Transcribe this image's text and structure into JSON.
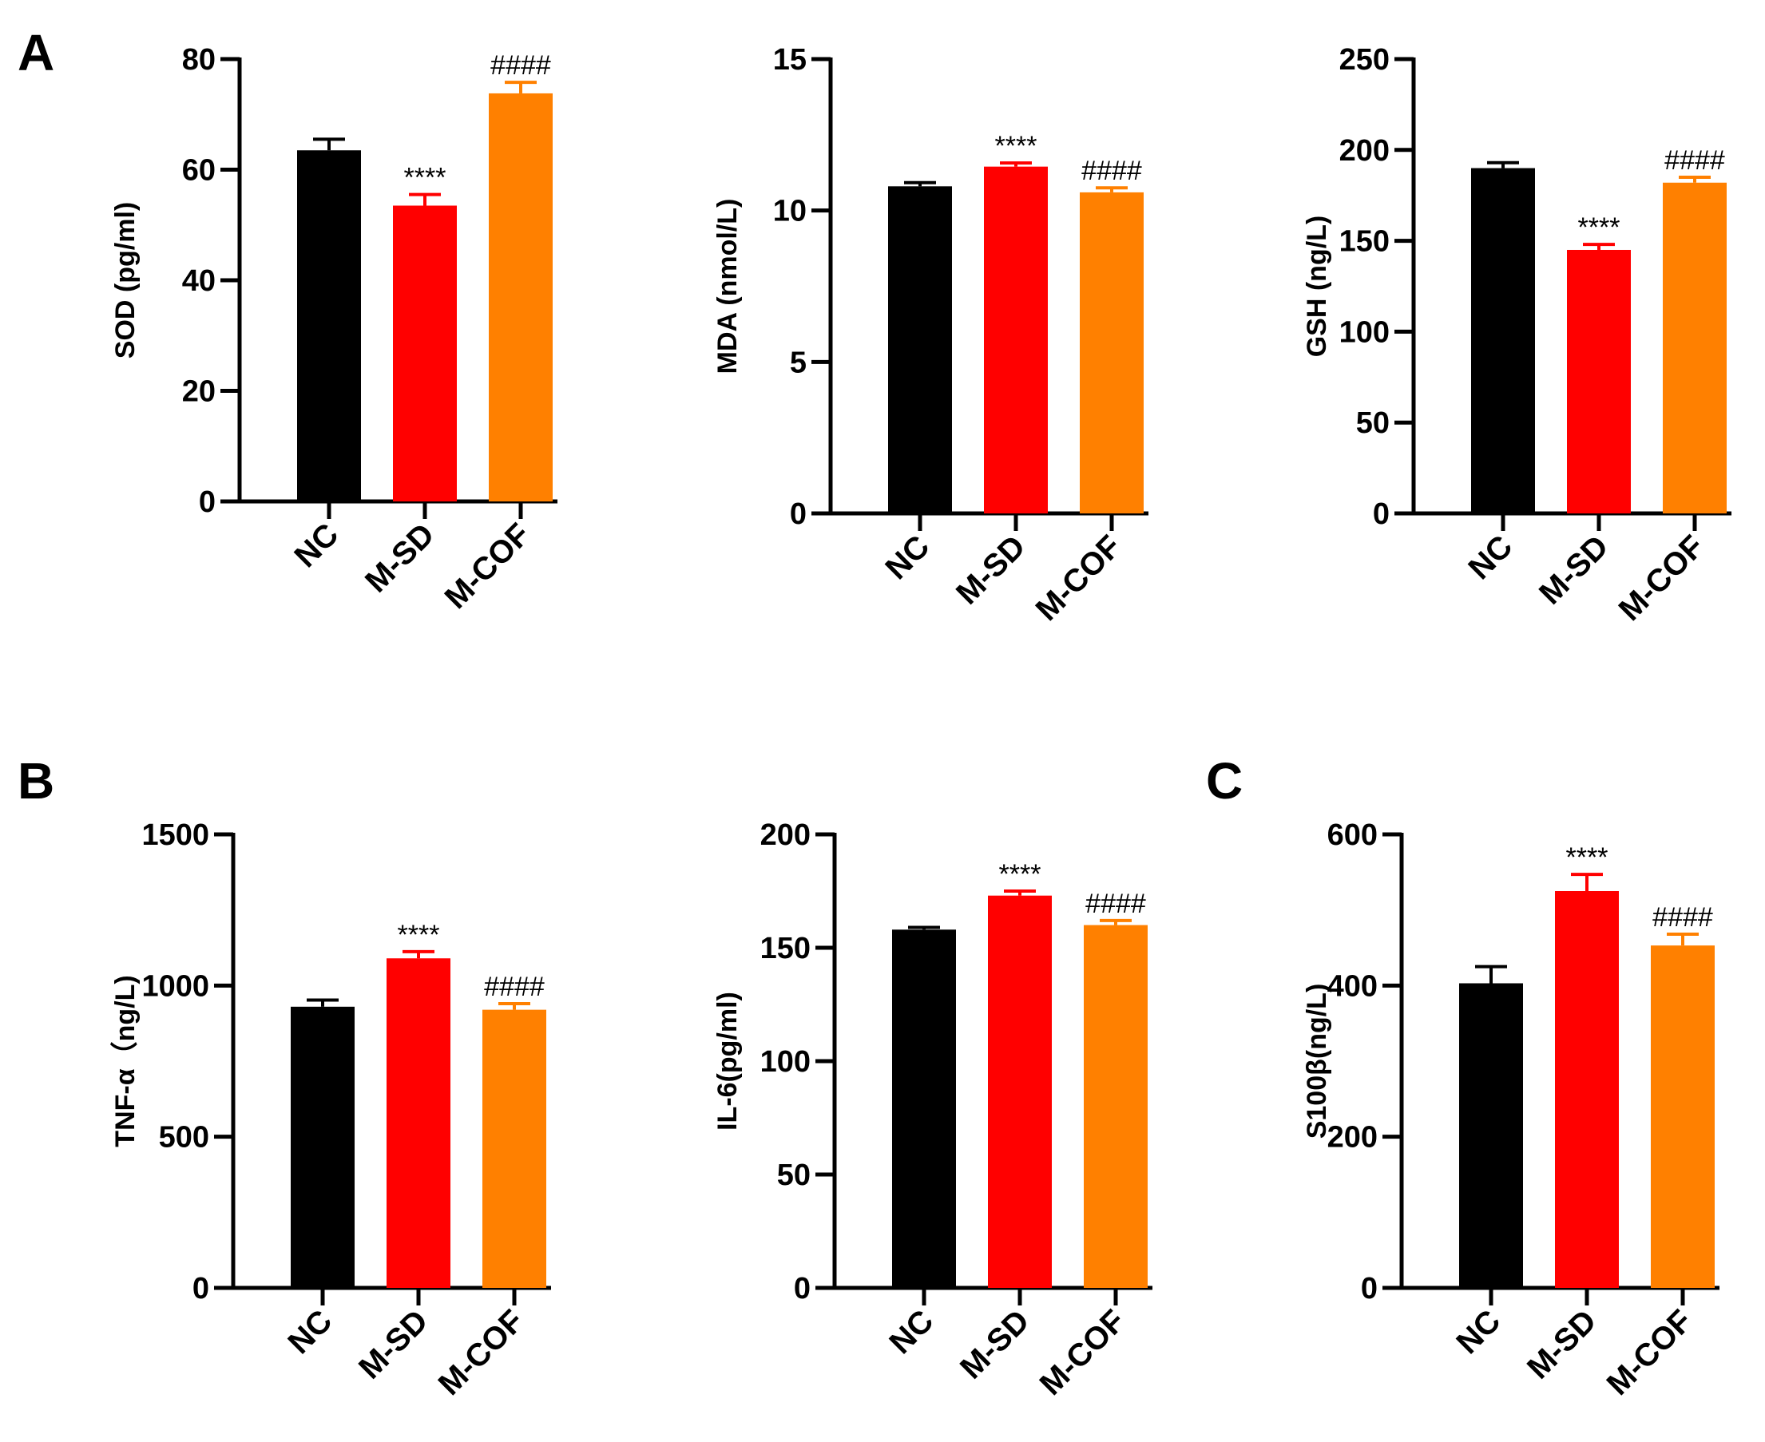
{
  "panels": [
    "A",
    "B",
    "C"
  ],
  "colors": {
    "NC": "#000000",
    "M-SD": "#ff0000",
    "M-COF": "#ff8000"
  },
  "chart_data": [
    {
      "type": "bar",
      "panel": "A",
      "ylabel": "SOD (pg/ml)",
      "ylim": [
        0,
        80
      ],
      "yticks": [
        0,
        20,
        40,
        60,
        80
      ],
      "categories": [
        "NC",
        "M-SD",
        "M-COF"
      ],
      "values": [
        63.5,
        53.5,
        73.8
      ],
      "errors": [
        2.0,
        2.0,
        2.0
      ],
      "annotations": [
        "",
        "****",
        "####"
      ]
    },
    {
      "type": "bar",
      "ylabel": "MDA (nmol/L)",
      "ylim": [
        0,
        15
      ],
      "yticks": [
        0,
        5,
        10,
        15
      ],
      "categories": [
        "NC",
        "M-SD",
        "M-COF"
      ],
      "values": [
        10.8,
        11.45,
        10.6
      ],
      "errors": [
        0.12,
        0.12,
        0.15
      ],
      "annotations": [
        "",
        "****",
        "####"
      ]
    },
    {
      "type": "bar",
      "ylabel": "GSH (ng/L)",
      "ylim": [
        0,
        250
      ],
      "yticks": [
        0,
        50,
        100,
        150,
        200,
        250
      ],
      "categories": [
        "NC",
        "M-SD",
        "M-COF"
      ],
      "values": [
        190,
        145,
        182
      ],
      "errors": [
        3,
        3,
        3
      ],
      "annotations": [
        "",
        "****",
        "####"
      ]
    },
    {
      "type": "bar",
      "panel": "B",
      "ylabel": "TNF-α（ng/L)",
      "ylim": [
        0,
        1500
      ],
      "yticks": [
        0,
        500,
        1000,
        1500
      ],
      "categories": [
        "NC",
        "M-SD",
        "M-COF"
      ],
      "values": [
        930,
        1090,
        920
      ],
      "errors": [
        22,
        22,
        20
      ],
      "annotations": [
        "",
        "****",
        "####"
      ]
    },
    {
      "type": "bar",
      "ylabel": "IL-6(pg/ml)",
      "ylim": [
        0,
        200
      ],
      "yticks": [
        0,
        50,
        100,
        150,
        200
      ],
      "categories": [
        "NC",
        "M-SD",
        "M-COF"
      ],
      "values": [
        158,
        173,
        160
      ],
      "errors": [
        1,
        2,
        2
      ],
      "annotations": [
        "",
        "****",
        "####"
      ]
    },
    {
      "type": "bar",
      "panel": "C",
      "ylabel": "S100β(ng/L)",
      "ylim": [
        0,
        600
      ],
      "yticks": [
        0,
        200,
        400,
        600
      ],
      "categories": [
        "NC",
        "M-SD",
        "M-COF"
      ],
      "values": [
        403,
        525,
        453
      ],
      "errors": [
        22,
        22,
        15
      ],
      "annotations": [
        "",
        "****",
        "####"
      ]
    }
  ]
}
